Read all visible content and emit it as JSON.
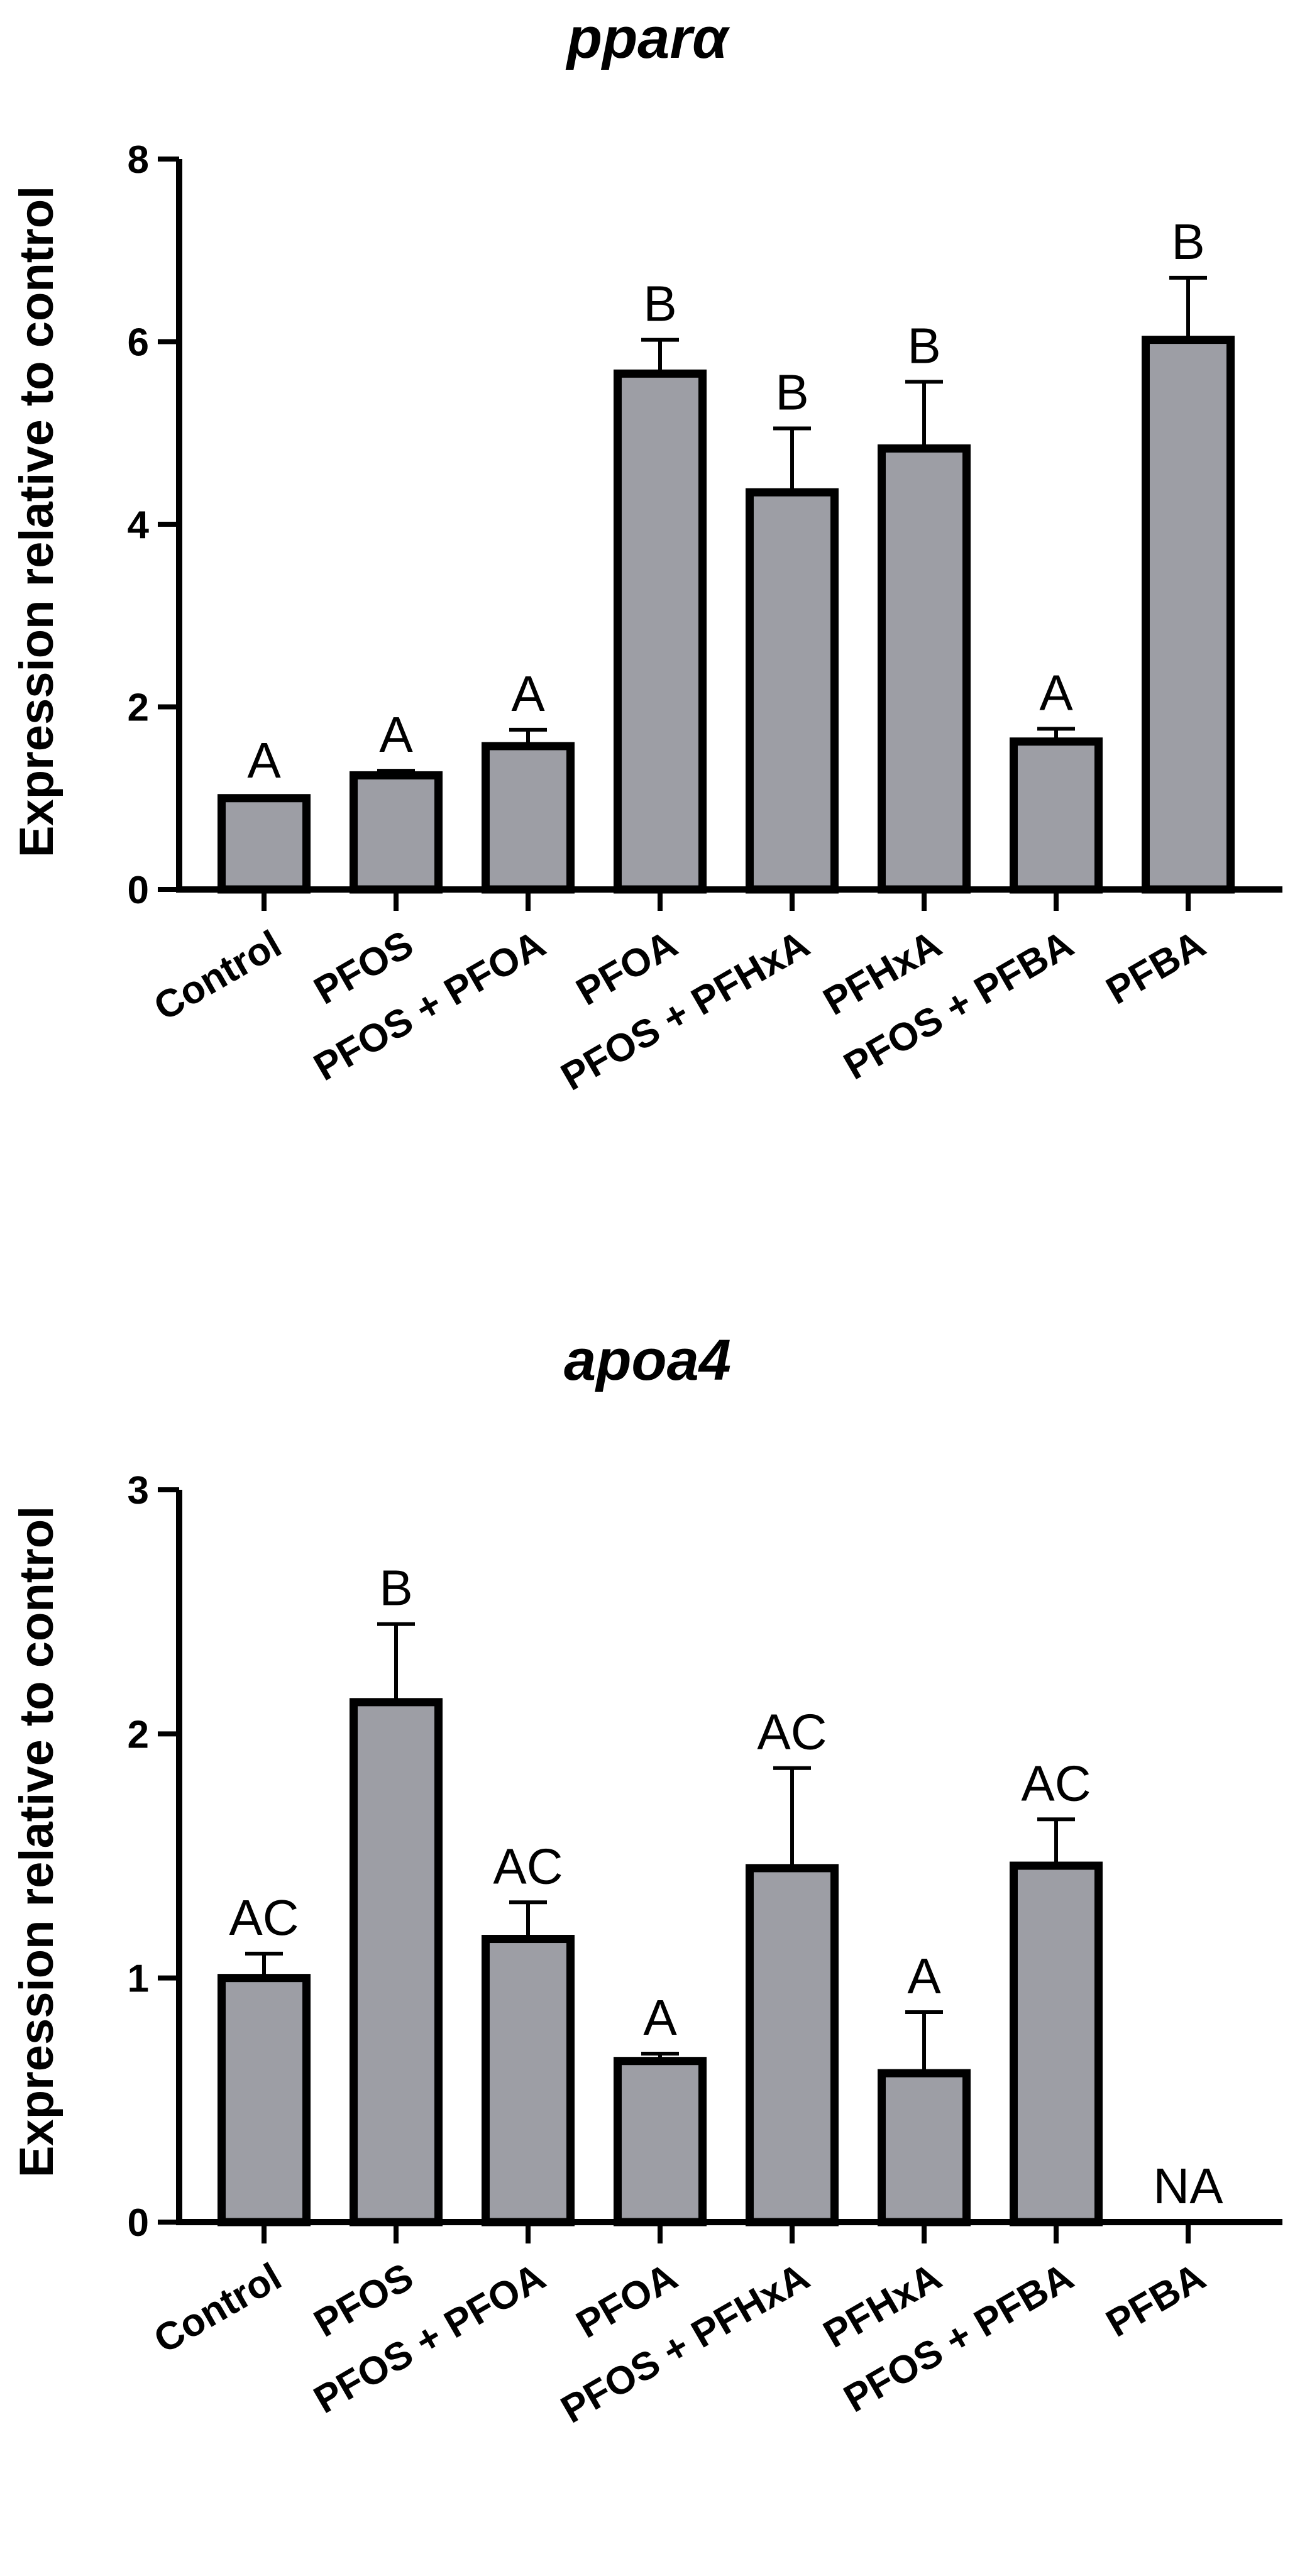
{
  "colors": {
    "bar_fill": "#9d9ea5",
    "stroke": "#000000",
    "background": "#ffffff"
  },
  "chart_data": [
    {
      "type": "bar",
      "title": "pparα",
      "ylabel": "Expression relative to control",
      "xlabel": "",
      "ylim": [
        0,
        8
      ],
      "yticks": [
        0,
        2,
        4,
        6,
        8
      ],
      "categories": [
        "Control",
        "PFOS",
        "PFOS + PFOA",
        "PFOA",
        "PFOS + PFHxA",
        "PFHxA",
        "PFOS + PFBA",
        "PFBA"
      ],
      "values": [
        1.0,
        1.25,
        1.57,
        5.65,
        4.35,
        4.83,
        1.62,
        6.02
      ],
      "error": [
        0.02,
        0.05,
        0.18,
        0.37,
        0.7,
        0.73,
        0.14,
        0.68
      ],
      "labels": [
        "A",
        "A",
        "A",
        "B",
        "B",
        "B",
        "A",
        "B"
      ]
    },
    {
      "type": "bar",
      "title": "apoa4",
      "ylabel": "Expression relative to control",
      "xlabel": "",
      "ylim": [
        0,
        3
      ],
      "yticks": [
        0,
        1,
        2,
        3
      ],
      "categories": [
        "Control",
        "PFOS",
        "PFOS + PFOA",
        "PFOA",
        "PFOS + PFHxA",
        "PFHxA",
        "PFOS + PFBA",
        "PFBA"
      ],
      "values": [
        1.0,
        2.13,
        1.16,
        0.66,
        1.45,
        0.61,
        1.46,
        null
      ],
      "error": [
        0.1,
        0.32,
        0.15,
        0.03,
        0.41,
        0.25,
        0.19,
        null
      ],
      "labels": [
        "AC",
        "B",
        "AC",
        "A",
        "AC",
        "A",
        "AC",
        "NA"
      ]
    }
  ]
}
